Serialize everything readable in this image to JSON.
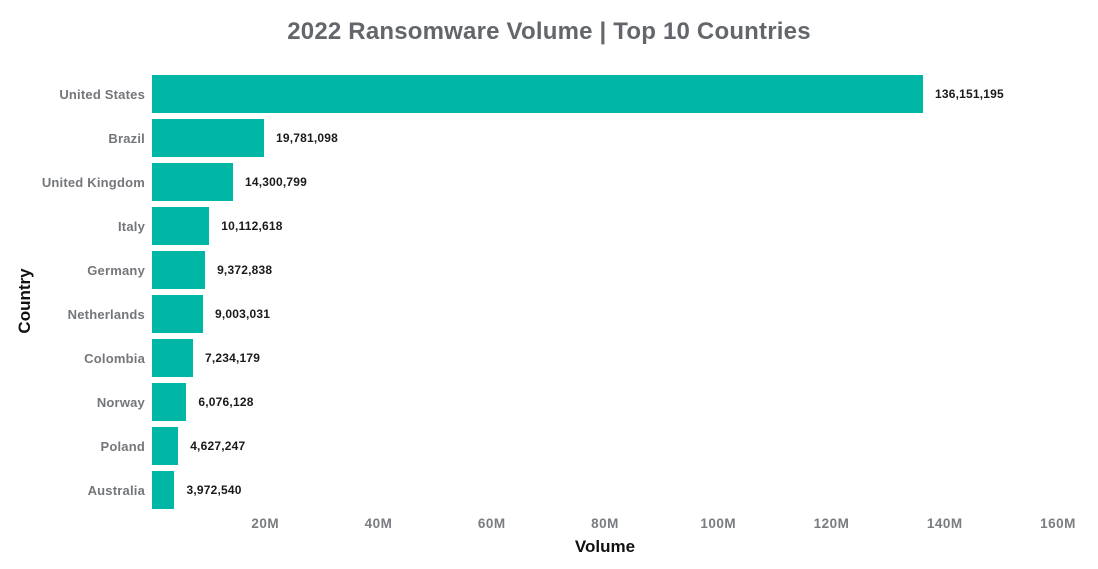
{
  "page": {
    "background": "#ffffff"
  },
  "chart_data": {
    "type": "bar",
    "orientation": "horizontal",
    "title": "2022 Ransomware Volume | Top 10 Countries",
    "xlabel": "Volume",
    "ylabel": "Country",
    "categories": [
      "United States",
      "Brazil",
      "United Kingdom",
      "Italy",
      "Germany",
      "Netherlands",
      "Colombia",
      "Norway",
      "Poland",
      "Australia"
    ],
    "values": [
      136151195,
      19781098,
      14300799,
      10112618,
      9372838,
      9003031,
      7234179,
      6076128,
      4627247,
      3972540
    ],
    "value_labels": [
      "136,151,195",
      "19,781,098",
      "14,300,799",
      "10,112,618",
      "9,372,838",
      "9,003,031",
      "7,234,179",
      "6,076,128",
      "4,627,247",
      "3,972,540"
    ],
    "xlim": [
      0,
      160000000
    ],
    "x_ticks": [
      {
        "value": 20000000,
        "label": "20M"
      },
      {
        "value": 40000000,
        "label": "40M"
      },
      {
        "value": 60000000,
        "label": "60M"
      },
      {
        "value": 80000000,
        "label": "80M"
      },
      {
        "value": 100000000,
        "label": "100M"
      },
      {
        "value": 120000000,
        "label": "120M"
      },
      {
        "value": 140000000,
        "label": "140M"
      },
      {
        "value": 160000000,
        "label": "160M"
      }
    ],
    "grid": false,
    "legend_position": "none",
    "colors": {
      "bar": "#00b6a4",
      "title": "#63666a",
      "category_label": "#73767a",
      "value_label": "#1a1a1a",
      "axis_title": "#111111",
      "tick_label": "#797c80"
    }
  }
}
